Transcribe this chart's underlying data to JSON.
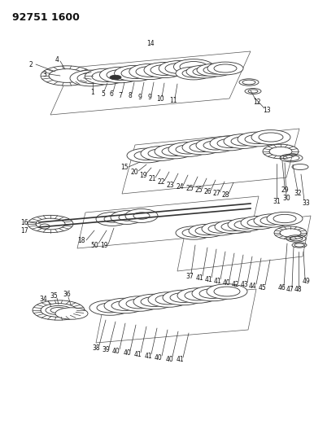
{
  "title": "92751 1600",
  "title_fontsize": 9,
  "title_fontweight": "bold",
  "bg_color": "#ffffff",
  "line_color": "#333333",
  "fig_width": 3.86,
  "fig_height": 5.33,
  "dpi": 100
}
